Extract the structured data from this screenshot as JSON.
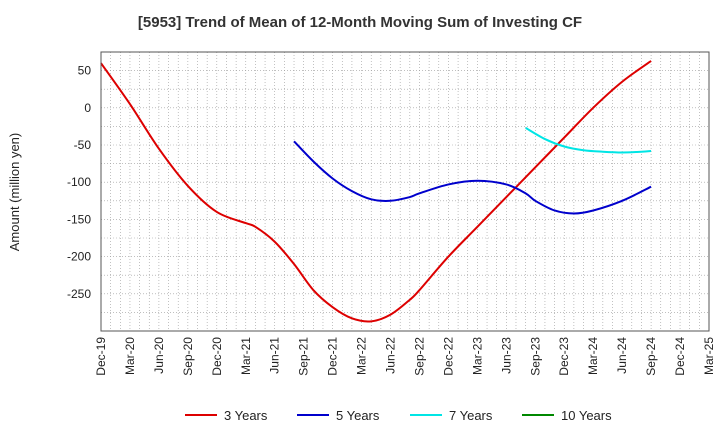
{
  "chart_data": {
    "type": "line",
    "title": "[5953]  Trend of Mean of 12-Month Moving Sum of Investing CF",
    "xlabel": "",
    "ylabel": "Amount (million yen)",
    "ylim": [
      -300,
      75
    ],
    "yticks": [
      50,
      0,
      -50,
      -100,
      -150,
      -200,
      -250
    ],
    "x_start": "Dec-19",
    "x_end": "Mar-25",
    "categories": [
      "Dec-19",
      "Mar-20",
      "Jun-20",
      "Sep-20",
      "Dec-20",
      "Mar-21",
      "Jun-21",
      "Sep-21",
      "Dec-21",
      "Mar-22",
      "Jun-22",
      "Sep-22",
      "Dec-22",
      "Mar-23",
      "Jun-23",
      "Sep-23",
      "Dec-23",
      "Mar-24",
      "Jun-24",
      "Sep-24",
      "Dec-24",
      "Mar-25"
    ],
    "grid": true,
    "legend_position": "bottom",
    "series": [
      {
        "name": "3 Years",
        "color": "#dd0000",
        "points": [
          [
            "Dec-19",
            60
          ],
          [
            "Mar-20",
            5
          ],
          [
            "Jun-20",
            -55
          ],
          [
            "Sep-20",
            -105
          ],
          [
            "Dec-20",
            -140
          ],
          [
            "Mar-21",
            -155
          ],
          [
            "Apr-21",
            -160
          ],
          [
            "Jun-21",
            -180
          ],
          [
            "Aug-21",
            -210
          ],
          [
            "Oct-21",
            -245
          ],
          [
            "Dec-21",
            -268
          ],
          [
            "Feb-22",
            -283
          ],
          [
            "Apr-22",
            -287
          ],
          [
            "Jun-22",
            -278
          ],
          [
            "Aug-22",
            -258
          ],
          [
            "Sep-22",
            -245
          ],
          [
            "Dec-22",
            -200
          ],
          [
            "Mar-23",
            -160
          ],
          [
            "Jun-23",
            -120
          ],
          [
            "Sep-23",
            -80
          ],
          [
            "Dec-23",
            -40
          ],
          [
            "Mar-24",
            0
          ],
          [
            "Jun-24",
            35
          ],
          [
            "Sep-24",
            63
          ]
        ]
      },
      {
        "name": "5 Years",
        "color": "#0000cc",
        "points": [
          [
            "Aug-21",
            -45
          ],
          [
            "Oct-21",
            -72
          ],
          [
            "Dec-21",
            -95
          ],
          [
            "Feb-22",
            -112
          ],
          [
            "Apr-22",
            -123
          ],
          [
            "Jun-22",
            -125
          ],
          [
            "Aug-22",
            -120
          ],
          [
            "Sep-22",
            -115
          ],
          [
            "Dec-22",
            -103
          ],
          [
            "Mar-23",
            -98
          ],
          [
            "Jun-23",
            -103
          ],
          [
            "Aug-23",
            -115
          ],
          [
            "Sep-23",
            -125
          ],
          [
            "Nov-23",
            -138
          ],
          [
            "Jan-24",
            -142
          ],
          [
            "Mar-24",
            -138
          ],
          [
            "Jun-24",
            -125
          ],
          [
            "Sep-24",
            -106
          ]
        ]
      },
      {
        "name": "7 Years",
        "color": "#00e5e5",
        "points": [
          [
            "Aug-23",
            -27
          ],
          [
            "Oct-23",
            -42
          ],
          [
            "Dec-23",
            -52
          ],
          [
            "Feb-24",
            -57
          ],
          [
            "Apr-24",
            -59
          ],
          [
            "Jun-24",
            -60
          ],
          [
            "Aug-24",
            -59
          ],
          [
            "Sep-24",
            -58
          ]
        ]
      },
      {
        "name": "10 Years",
        "color": "#008800",
        "points": []
      }
    ]
  }
}
